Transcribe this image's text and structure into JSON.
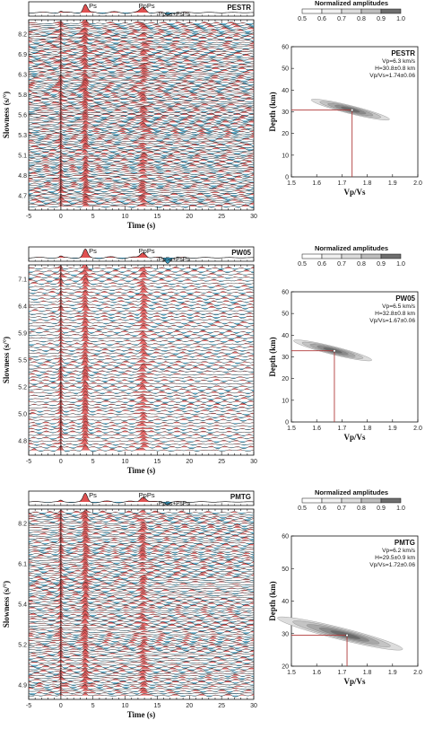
{
  "common": {
    "time_label": "Time (s)",
    "slowness_label": "Slowness (s/°)",
    "time_ticks": [
      "-5",
      "0",
      "5",
      "10",
      "15",
      "20",
      "25",
      "30"
    ],
    "depth_label": "Depth (km)",
    "vpvs_label": "Vp/Vs",
    "depth_ticks": [
      "0",
      "10",
      "20",
      "30",
      "40",
      "50",
      "60"
    ],
    "vpvs_ticks": [
      "1.5",
      "1.6",
      "1.7",
      "1.8",
      "1.9",
      "2.0"
    ],
    "colorbar_title": "Normalized amplitudes",
    "colorbar_ticks": [
      "0.5",
      "0.6",
      "0.7",
      "0.8",
      "0.9",
      "1.0"
    ],
    "phases": {
      "ps": "Ps",
      "ppps": "PpPs",
      "ppss": "PpSs+PsPs"
    },
    "colors": {
      "positive": "#e05050",
      "negative": "#3aa0c8",
      "trace": "#111111",
      "marker": "#b03a3a"
    }
  },
  "panels": [
    {
      "station": "PESTR",
      "slowness_ticks": [
        "8.2",
        "6.9",
        "6.3",
        "5.8",
        "5.6",
        "5.3",
        "5.1",
        "4.8",
        "4.7"
      ],
      "vp": "Vp=6.3 km/s",
      "h": "H=30.8±0.8 km",
      "vpvs": "Vp/Vs=1.74±0.06",
      "density": 0.95
    },
    {
      "station": "PW05",
      "slowness_ticks": [
        "7.1",
        "6.4",
        "5.9",
        "5.5",
        "5.2",
        "5.0",
        "4.8"
      ],
      "vp": "Vp=6.5 km/s",
      "h": "H=32.8±0.8 km",
      "vpvs": "Vp/Vs=1.67±0.06",
      "density": 0.35
    },
    {
      "station": "PMTG",
      "slowness_ticks": [
        "8.2",
        "6.1",
        "5.4",
        "5.2",
        "4.9"
      ],
      "vp": "Vp=6.2 km/s",
      "h": "H=29.5±0.9 km",
      "vpvs": "Vp/Vs=1.72±0.06",
      "density": 0.75
    }
  ],
  "chart_data": [
    {
      "type": "line",
      "title": "PESTR",
      "xlabel": "Time (s)",
      "ylabel": "Slowness (s/°)",
      "xlim": [
        -5,
        30
      ],
      "phase_times": {
        "Ps": 3.8,
        "PpPs": 12.8,
        "PpSs+PsPs": 16.6
      },
      "y_ticks": [
        8.2,
        6.9,
        6.3,
        5.8,
        5.6,
        5.3,
        5.1,
        4.8,
        4.7
      ]
    },
    {
      "type": "heatmap",
      "title": "PESTR",
      "xlabel": "Vp/Vs",
      "ylabel": "Depth (km)",
      "xlim": [
        1.5,
        2.0
      ],
      "ylim": [
        60,
        0
      ],
      "best": {
        "vpvs": 1.74,
        "depth": 30.8
      },
      "annotations": [
        "Vp=6.3 km/s",
        "H=30.8±0.8 km",
        "Vp/Vs=1.74±0.06"
      ]
    },
    {
      "type": "line",
      "title": "PW05",
      "xlabel": "Time (s)",
      "ylabel": "Slowness (s/°)",
      "xlim": [
        -5,
        30
      ],
      "phase_times": {
        "Ps": 3.8,
        "PpPs": 12.8,
        "PpSs+PsPs": 16.4
      },
      "y_ticks": [
        7.1,
        6.4,
        5.9,
        5.5,
        5.2,
        5.0,
        4.8
      ]
    },
    {
      "type": "heatmap",
      "title": "PW05",
      "xlabel": "Vp/Vs",
      "ylabel": "Depth (km)",
      "xlim": [
        1.5,
        2.0
      ],
      "ylim": [
        60,
        0
      ],
      "best": {
        "vpvs": 1.67,
        "depth": 32.8
      },
      "annotations": [
        "Vp=6.5 km/s",
        "H=32.8±0.8 km",
        "Vp/Vs=1.67±0.06"
      ]
    },
    {
      "type": "line",
      "title": "PMTG",
      "xlabel": "Time (s)",
      "ylabel": "Slowness (s/°)",
      "xlim": [
        -5,
        30
      ],
      "phase_times": {
        "Ps": 3.8,
        "PpPs": 12.8,
        "PpSs+PsPs": 16.6
      },
      "y_ticks": [
        8.2,
        6.1,
        5.4,
        5.2,
        4.9
      ]
    },
    {
      "type": "heatmap",
      "title": "PMTG",
      "xlabel": "Vp/Vs",
      "ylabel": "Depth (km)",
      "xlim": [
        1.5,
        2.0
      ],
      "ylim": [
        60,
        20
      ],
      "best": {
        "vpvs": 1.72,
        "depth": 29.5
      },
      "annotations": [
        "Vp=6.2 km/s",
        "H=29.5±0.9 km",
        "Vp/Vs=1.72±0.06"
      ]
    }
  ]
}
